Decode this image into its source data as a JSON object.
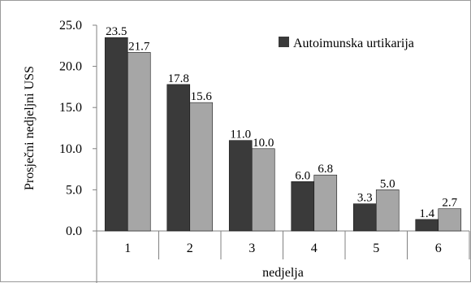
{
  "chart_data": {
    "type": "bar",
    "categories": [
      "1",
      "2",
      "3",
      "4",
      "5",
      "6"
    ],
    "series": [
      {
        "name": "Autoimunska urtikarija",
        "values": [
          23.5,
          17.8,
          11.0,
          6.0,
          3.3,
          1.4
        ],
        "labels": [
          "23.5",
          "17.8",
          "11.0",
          "6.0",
          "3.3",
          "1.4"
        ],
        "color": "#3a3a3a"
      },
      {
        "name": "",
        "values": [
          21.7,
          15.6,
          10.0,
          6.8,
          5.0,
          2.7
        ],
        "labels": [
          "21.7",
          "15.6",
          "10.0",
          "6.8",
          "5.0",
          "2.7"
        ],
        "color": "#a6a6a6"
      }
    ],
    "xlabel": "nedjelja",
    "ylabel": "Prosječni nedjeljni USS",
    "ylim": [
      0,
      25
    ],
    "yticks": [
      "0.0",
      "5.0",
      "10.0",
      "15.0",
      "20.0",
      "25.0"
    ],
    "ytick_values": [
      0,
      5,
      10,
      15,
      20,
      25
    ],
    "grid": false,
    "legend_position": "top-right"
  }
}
